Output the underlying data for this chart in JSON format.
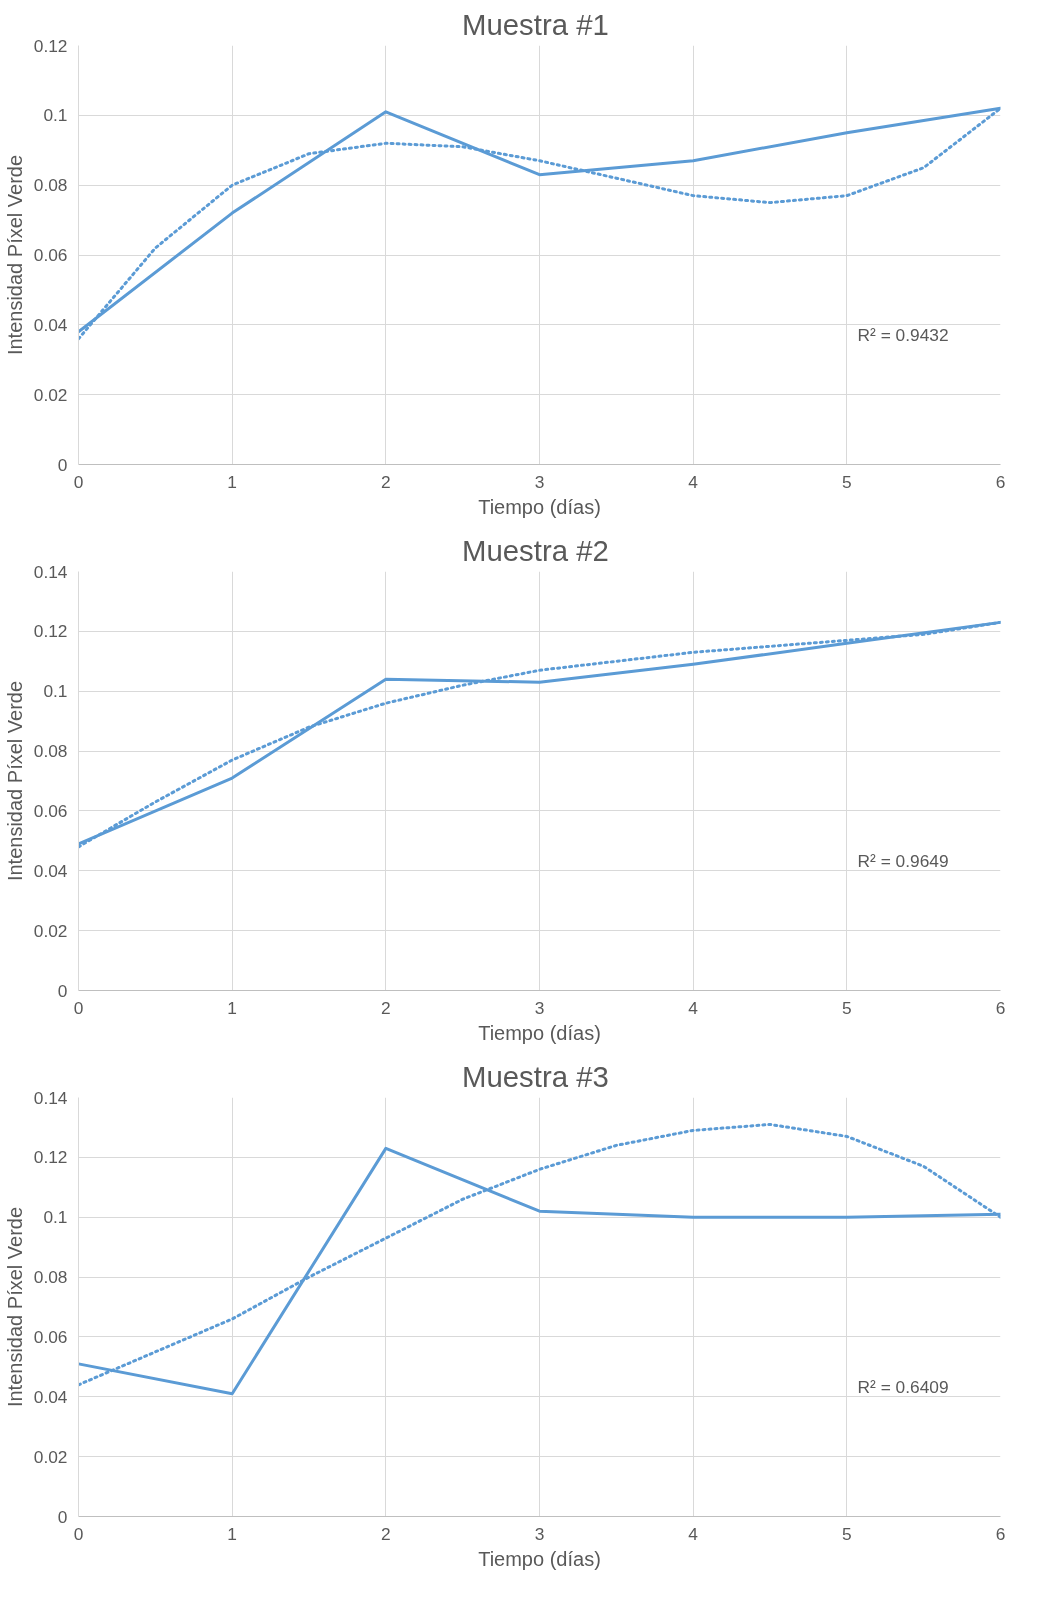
{
  "chart_data": [
    {
      "type": "line",
      "title": "Muestra  #1",
      "xlabel": "Tiempo (días)",
      "ylabel": "Intensidad Píxel Verde",
      "xlim": [
        0,
        6
      ],
      "xticks": [
        0,
        1,
        2,
        3,
        4,
        5,
        6
      ],
      "ylim": [
        0,
        0.12
      ],
      "yticks": [
        0,
        0.02,
        0.04,
        0.06,
        0.08,
        0.1,
        0.12
      ],
      "grid": true,
      "annotations": [
        "R² = 0.9432"
      ],
      "series": [
        {
          "color": "#5b9bd5",
          "x": [
            0,
            1,
            2,
            3,
            4,
            5,
            6
          ],
          "values": [
            0.038,
            0.072,
            0.101,
            0.083,
            0.087,
            0.095,
            0.102
          ],
          "line_style": "solid"
        },
        {
          "color": "#5b9bd5",
          "x": [
            0,
            0.5,
            1,
            1.5,
            2,
            2.5,
            3,
            3.5,
            4,
            4.5,
            5,
            5.5,
            6
          ],
          "values": [
            0.036,
            0.062,
            0.08,
            0.089,
            0.092,
            0.091,
            0.087,
            0.082,
            0.077,
            0.075,
            0.077,
            0.085,
            0.102
          ],
          "line_style": "dotted"
        }
      ]
    },
    {
      "type": "line",
      "title": "Muestra  #2",
      "xlabel": "Tiempo (días)",
      "ylabel": "Intensidad Píxel Verde",
      "xlim": [
        0,
        6
      ],
      "xticks": [
        0,
        1,
        2,
        3,
        4,
        5,
        6
      ],
      "ylim": [
        0,
        0.14
      ],
      "yticks": [
        0,
        0.02,
        0.04,
        0.06,
        0.08,
        0.1,
        0.12,
        0.14
      ],
      "grid": true,
      "annotations": [
        "R² = 0.9649"
      ],
      "series": [
        {
          "color": "#5b9bd5",
          "x": [
            0,
            1,
            2,
            3,
            4,
            5,
            6
          ],
          "values": [
            0.049,
            0.071,
            0.104,
            0.103,
            0.109,
            0.116,
            0.123
          ],
          "line_style": "solid"
        },
        {
          "color": "#5b9bd5",
          "x": [
            0,
            0.5,
            1,
            1.5,
            2,
            2.5,
            3,
            3.5,
            4,
            4.5,
            5,
            5.5,
            6
          ],
          "values": [
            0.048,
            0.063,
            0.077,
            0.088,
            0.096,
            0.102,
            0.107,
            0.11,
            0.113,
            0.115,
            0.117,
            0.119,
            0.123
          ],
          "line_style": "dotted"
        }
      ]
    },
    {
      "type": "line",
      "title": "Muestra  #3",
      "xlabel": "Tiempo (días)",
      "ylabel": "Intensidad Píxel Verde",
      "xlim": [
        0,
        6
      ],
      "xticks": [
        0,
        1,
        2,
        3,
        4,
        5,
        6
      ],
      "ylim": [
        0,
        0.14
      ],
      "yticks": [
        0,
        0.02,
        0.04,
        0.06,
        0.08,
        0.1,
        0.12,
        0.14
      ],
      "grid": true,
      "annotations": [
        "R² = 0.6409"
      ],
      "series": [
        {
          "color": "#5b9bd5",
          "x": [
            0,
            1,
            2,
            3,
            4,
            5,
            6
          ],
          "values": [
            0.051,
            0.041,
            0.123,
            0.102,
            0.1,
            0.1,
            0.101
          ],
          "line_style": "solid"
        },
        {
          "color": "#5b9bd5",
          "x": [
            0,
            0.5,
            1,
            1.5,
            2,
            2.5,
            3,
            3.5,
            4,
            4.5,
            5,
            5.5,
            6
          ],
          "values": [
            0.044,
            0.055,
            0.066,
            0.08,
            0.093,
            0.106,
            0.116,
            0.124,
            0.129,
            0.131,
            0.127,
            0.117,
            0.1
          ],
          "line_style": "dotted"
        }
      ]
    }
  ]
}
